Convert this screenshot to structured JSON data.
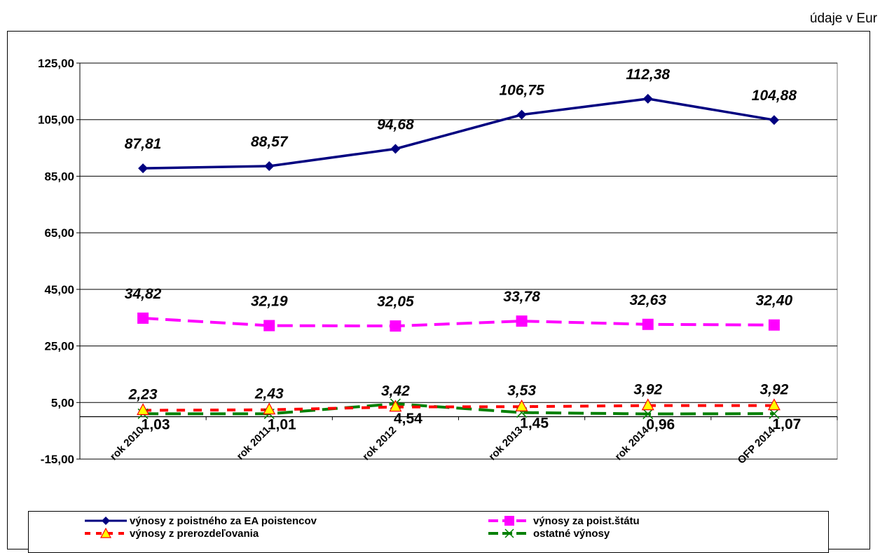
{
  "unit_note": "údaje v Eur",
  "chart_data": {
    "type": "line",
    "categories": [
      "rok 2010",
      "rok 2011",
      "rok 2012",
      "rok 2013",
      "rok 2014",
      "OFP 2014"
    ],
    "ylim": [
      -15,
      125
    ],
    "yticks": [
      "125,00",
      "105,00",
      "85,00",
      "65,00",
      "45,00",
      "25,00",
      "5,00",
      "-15,00"
    ],
    "ytick_values": [
      125,
      105,
      85,
      65,
      45,
      25,
      5,
      -15
    ],
    "grid": true,
    "legend_position": "bottom",
    "series": [
      {
        "name": "výnosy z poistného za EA poistencov",
        "color": "#000080",
        "dash": "solid",
        "marker": "diamond",
        "values": [
          87.81,
          88.57,
          94.68,
          106.75,
          112.38,
          104.88
        ],
        "labels": [
          "87,81",
          "88,57",
          "94,68",
          "106,75",
          "112,38",
          "104,88"
        ]
      },
      {
        "name": "výnosy za poist.štátu",
        "color": "#ff00ff",
        "dash": "dashed",
        "marker": "square",
        "values": [
          34.82,
          32.19,
          32.05,
          33.78,
          32.63,
          32.4
        ],
        "labels": [
          "34,82",
          "32,19",
          "32,05",
          "33,78",
          "32,63",
          "32,40"
        ]
      },
      {
        "name": "výnosy z prerozdeľovania",
        "color": "#ff0000",
        "dash": "dotted",
        "marker": "triangle",
        "marker_fill": "#ffff00",
        "values": [
          2.23,
          2.43,
          3.42,
          3.53,
          3.92,
          3.92
        ],
        "labels": [
          "2,23",
          "2,43",
          "3,42",
          "3,53",
          "3,92",
          "3,92"
        ]
      },
      {
        "name": "ostatné výnosy",
        "color": "#008000",
        "dash": "dashed",
        "marker": "x",
        "values": [
          1.03,
          1.01,
          4.54,
          1.45,
          0.96,
          1.07
        ],
        "labels": [
          "1,03",
          "1,01",
          "4,54",
          "1,45",
          "0,96",
          "1,07"
        ]
      }
    ]
  }
}
